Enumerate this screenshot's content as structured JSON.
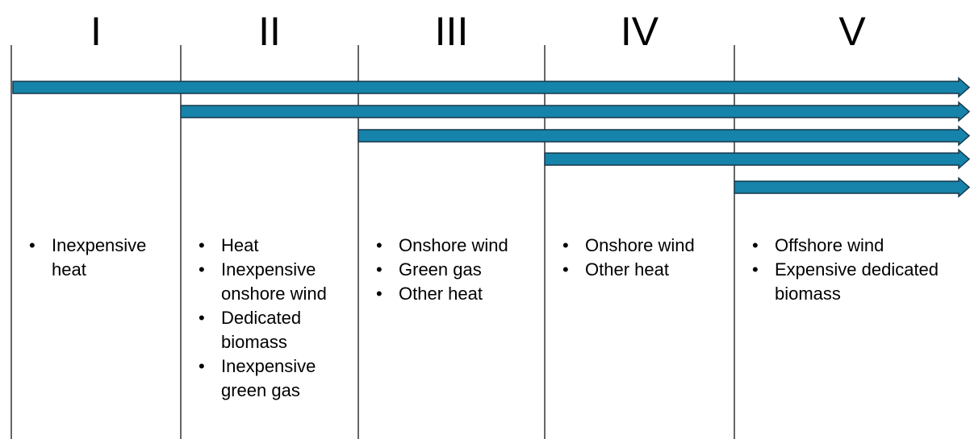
{
  "columns": [
    {
      "label": "I",
      "items": [
        "Inexpensive heat"
      ]
    },
    {
      "label": "II",
      "items": [
        "Heat",
        "Inexpensive onshore wind",
        "Dedicated biomass",
        "Inexpensive green gas"
      ]
    },
    {
      "label": "III",
      "items": [
        "Onshore wind",
        "Green gas",
        "Other heat"
      ]
    },
    {
      "label": "IV",
      "items": [
        "Onshore wind",
        "Other heat"
      ]
    },
    {
      "label": "V",
      "items": [
        "Offshore wind",
        "Expensive dedicated biomass"
      ]
    }
  ]
}
